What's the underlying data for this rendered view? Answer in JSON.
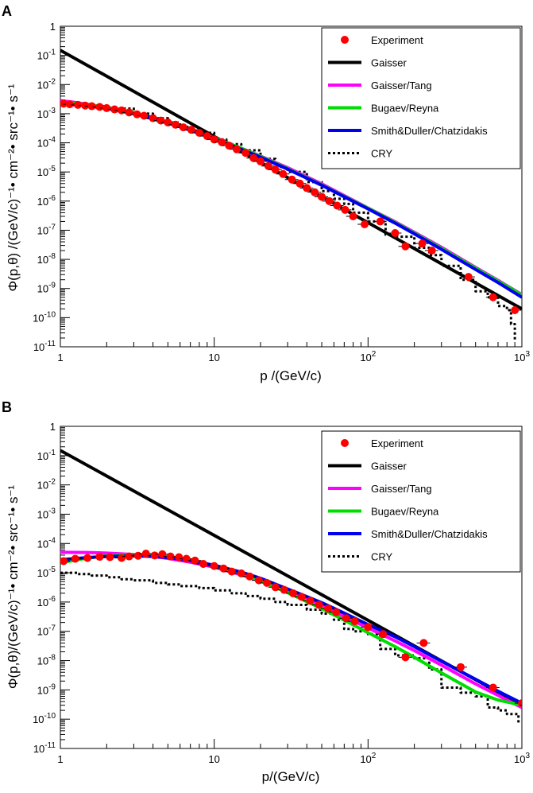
{
  "chart_data": [
    {
      "panel": "A",
      "type": "line",
      "xscale": "log",
      "yscale": "log",
      "xlim": [
        1,
        1000
      ],
      "ylim": [
        1e-11,
        1
      ],
      "xlabel": "p /(GeV/c)",
      "ylabel": "Φ(p,θ) /(GeV/c)⁻¹• cm⁻²• src⁻¹• s⁻¹",
      "xticks": [
        {
          "value": 1,
          "base": "1",
          "exp": ""
        },
        {
          "value": 10,
          "base": "10",
          "exp": ""
        },
        {
          "value": 100,
          "base": "10",
          "exp": "2"
        },
        {
          "value": 1000,
          "base": "10",
          "exp": "3"
        }
      ],
      "yticks": [
        {
          "value": 1,
          "base": "1",
          "exp": ""
        },
        {
          "value": 0.1,
          "base": "10",
          "exp": "-1"
        },
        {
          "value": 0.01,
          "base": "10",
          "exp": "-2"
        },
        {
          "value": 0.001,
          "base": "10",
          "exp": "-3"
        },
        {
          "value": 0.0001,
          "base": "10",
          "exp": "-4"
        },
        {
          "value": 1e-05,
          "base": "10",
          "exp": "-5"
        },
        {
          "value": 1e-06,
          "base": "10",
          "exp": "-6"
        },
        {
          "value": 1e-07,
          "base": "10",
          "exp": "-7"
        },
        {
          "value": 1e-08,
          "base": "10",
          "exp": "-8"
        },
        {
          "value": 1e-09,
          "base": "10",
          "exp": "-9"
        },
        {
          "value": 1e-10,
          "base": "10",
          "exp": "-10"
        },
        {
          "value": 1e-11,
          "base": "10",
          "exp": "-11"
        }
      ],
      "legend_position": "top-right",
      "experiment": {
        "name": "Experiment",
        "color": "#ff0000",
        "points": [
          {
            "x": 1.05,
            "y": 0.0022
          },
          {
            "x": 1.15,
            "y": 0.0021
          },
          {
            "x": 1.3,
            "y": 0.002
          },
          {
            "x": 1.45,
            "y": 0.0019
          },
          {
            "x": 1.6,
            "y": 0.0018
          },
          {
            "x": 1.8,
            "y": 0.0017
          },
          {
            "x": 2.0,
            "y": 0.00155
          },
          {
            "x": 2.25,
            "y": 0.0014
          },
          {
            "x": 2.5,
            "y": 0.0013
          },
          {
            "x": 2.8,
            "y": 0.0011
          },
          {
            "x": 3.15,
            "y": 0.00095
          },
          {
            "x": 3.5,
            "y": 0.00085
          },
          {
            "x": 4.0,
            "y": 0.0007
          },
          {
            "x": 4.5,
            "y": 0.00058
          },
          {
            "x": 5.0,
            "y": 0.0005
          },
          {
            "x": 5.6,
            "y": 0.00042
          },
          {
            "x": 6.3,
            "y": 0.00034
          },
          {
            "x": 7.1,
            "y": 0.00028
          },
          {
            "x": 8.0,
            "y": 0.00022
          },
          {
            "x": 9.0,
            "y": 0.00017
          },
          {
            "x": 10.0,
            "y": 0.00013
          },
          {
            "x": 11.2,
            "y": 0.000105
          },
          {
            "x": 12.5,
            "y": 8e-05
          },
          {
            "x": 14.0,
            "y": 6e-05
          },
          {
            "x": 16.0,
            "y": 4.5e-05
          },
          {
            "x": 18.0,
            "y": 3e-05
          },
          {
            "x": 20.0,
            "y": 2.3e-05
          },
          {
            "x": 22.5,
            "y": 1.6e-05
          },
          {
            "x": 25.0,
            "y": 1.2e-05
          },
          {
            "x": 28.0,
            "y": 8.5e-06
          },
          {
            "x": 32.0,
            "y": 5.5e-06
          },
          {
            "x": 36.0,
            "y": 4e-06
          },
          {
            "x": 40.0,
            "y": 2.8e-06
          },
          {
            "x": 45.0,
            "y": 2e-06
          },
          {
            "x": 50.0,
            "y": 1.4e-06
          },
          {
            "x": 56.0,
            "y": 1e-06
          },
          {
            "x": 63.0,
            "y": 7e-07
          },
          {
            "x": 71.0,
            "y": 5e-07
          },
          {
            "x": 80.0,
            "y": 3e-07
          },
          {
            "x": 95.0,
            "y": 1.6e-07
          },
          {
            "x": 120.0,
            "y": 2e-07
          },
          {
            "x": 150.0,
            "y": 8e-08
          },
          {
            "x": 175.0,
            "y": 2.8e-08
          },
          {
            "x": 225.0,
            "y": 3.5e-08
          },
          {
            "x": 260.0,
            "y": 2e-08
          },
          {
            "x": 450.0,
            "y": 2.5e-09
          },
          {
            "x": 650.0,
            "y": 5e-10
          },
          {
            "x": 900.0,
            "y": 1.8e-10
          }
        ]
      },
      "series": [
        {
          "name": "Gaisser",
          "color": "#000000",
          "style": "solid",
          "x": [
            1,
            1000
          ],
          "y": [
            0.15,
            2e-10
          ]
        },
        {
          "name": "Gaisser/Tang",
          "color": "#ff00ff",
          "style": "solid",
          "x": [
            1,
            1.2,
            1.5,
            2,
            3,
            5,
            7,
            10,
            15,
            20,
            30,
            50,
            70,
            100,
            150,
            200,
            300,
            500,
            700,
            1000
          ],
          "y": [
            0.0028,
            0.0025,
            0.0021,
            0.0016,
            0.001,
            0.00048,
            0.00028,
            0.000145,
            6.5e-05,
            3.5e-05,
            1.4e-05,
            3.9e-06,
            1.55e-06,
            5.8e-07,
            1.95e-07,
            8.5e-08,
            2.6e-08,
            5.3e-09,
            1.9e-09,
            6.2e-10
          ]
        },
        {
          "name": "Bugaev/Reyna",
          "color": "#00dd00",
          "style": "solid",
          "x": [
            1,
            1.2,
            1.5,
            2,
            3,
            5,
            7,
            10,
            15,
            20,
            30,
            50,
            70,
            100,
            150,
            200,
            300,
            500,
            700,
            1000
          ],
          "y": [
            0.0024,
            0.0023,
            0.00205,
            0.00165,
            0.0011,
            0.00052,
            0.00029,
            0.00015,
            6.5e-05,
            3.4e-05,
            1.3e-05,
            3.6e-06,
            1.45e-06,
            5.7e-07,
            1.85e-07,
            8e-08,
            2.4e-08,
            5e-09,
            1.8e-09,
            6e-10
          ]
        },
        {
          "name": "Smith&Duller/Chatzidakis",
          "color": "#0000ee",
          "style": "solid",
          "x": [
            1,
            1.2,
            1.5,
            2,
            3,
            5,
            7,
            10,
            15,
            20,
            30,
            50,
            70,
            100,
            150,
            200,
            300,
            500,
            700,
            1000
          ],
          "y": [
            0.0022,
            0.00205,
            0.00185,
            0.0015,
            0.001,
            0.00048,
            0.00027,
            0.00014,
            6e-05,
            3.2e-05,
            1.25e-05,
            3.5e-06,
            1.4e-06,
            5.4e-07,
            1.75e-07,
            7.5e-08,
            2.2e-08,
            4.5e-09,
            1.6e-09,
            5e-10
          ]
        },
        {
          "name": "CRY",
          "color": "#000000",
          "style": "dotted",
          "x": [
            1,
            1.5,
            2,
            3,
            4,
            5,
            6,
            7,
            8,
            10,
            12,
            15,
            20,
            25,
            30,
            40,
            50,
            60,
            70,
            80,
            100,
            130,
            150,
            200,
            250,
            300,
            400,
            500,
            600,
            700,
            800,
            850,
            900
          ],
          "y": [
            0.002,
            0.0018,
            0.0015,
            0.001,
            0.0007,
            0.0005,
            0.00035,
            0.00028,
            0.00022,
            0.00013,
            9e-05,
            5.5e-05,
            2.8e-05,
            1.5e-05,
            1e-05,
            4.5e-06,
            2.2e-06,
            1.2e-06,
            8e-07,
            4e-07,
            2e-07,
            7e-08,
            6e-08,
            2.5e-08,
            1.4e-08,
            6e-09,
            2e-09,
            8e-10,
            5e-10,
            2.5e-10,
            1.8e-10,
            6e-11,
            1.5e-11
          ]
        }
      ]
    },
    {
      "panel": "B",
      "type": "line",
      "xscale": "log",
      "yscale": "log",
      "xlim": [
        1,
        1000
      ],
      "ylim": [
        1e-11,
        1
      ],
      "xlabel": "p/(GeV/c)",
      "ylabel": "Φ(p,θ)/(GeV/c)⁻¹• cm⁻²• src⁻¹• s⁻¹",
      "xticks": [
        {
          "value": 1,
          "base": "1",
          "exp": ""
        },
        {
          "value": 10,
          "base": "10",
          "exp": ""
        },
        {
          "value": 100,
          "base": "10",
          "exp": "2"
        },
        {
          "value": 1000,
          "base": "10",
          "exp": "3"
        }
      ],
      "yticks": [
        {
          "value": 1,
          "base": "1",
          "exp": ""
        },
        {
          "value": 0.1,
          "base": "10",
          "exp": "-1"
        },
        {
          "value": 0.01,
          "base": "10",
          "exp": "-2"
        },
        {
          "value": 0.001,
          "base": "10",
          "exp": "-3"
        },
        {
          "value": 0.0001,
          "base": "10",
          "exp": "-4"
        },
        {
          "value": 1e-05,
          "base": "10",
          "exp": "-5"
        },
        {
          "value": 1e-06,
          "base": "10",
          "exp": "-6"
        },
        {
          "value": 1e-07,
          "base": "10",
          "exp": "-7"
        },
        {
          "value": 1e-08,
          "base": "10",
          "exp": "-8"
        },
        {
          "value": 1e-09,
          "base": "10",
          "exp": "-9"
        },
        {
          "value": 1e-10,
          "base": "10",
          "exp": "-10"
        },
        {
          "value": 1e-11,
          "base": "10",
          "exp": "-11"
        }
      ],
      "legend_position": "top-right",
      "experiment": {
        "name": "Experiment",
        "color": "#ff0000",
        "points": [
          {
            "x": 1.05,
            "y": 2.5e-05
          },
          {
            "x": 1.25,
            "y": 3e-05
          },
          {
            "x": 1.5,
            "y": 3.2e-05
          },
          {
            "x": 1.8,
            "y": 3.5e-05
          },
          {
            "x": 2.1,
            "y": 3.4e-05
          },
          {
            "x": 2.5,
            "y": 3.2e-05
          },
          {
            "x": 2.8,
            "y": 3.6e-05
          },
          {
            "x": 3.2,
            "y": 3.8e-05
          },
          {
            "x": 3.6,
            "y": 4.5e-05
          },
          {
            "x": 4.1,
            "y": 3.9e-05
          },
          {
            "x": 4.6,
            "y": 4.3e-05
          },
          {
            "x": 5.2,
            "y": 3.6e-05
          },
          {
            "x": 5.9,
            "y": 3.4e-05
          },
          {
            "x": 6.6,
            "y": 3e-05
          },
          {
            "x": 7.5,
            "y": 2.6e-05
          },
          {
            "x": 8.5,
            "y": 2e-05
          },
          {
            "x": 10.0,
            "y": 1.7e-05
          },
          {
            "x": 11.5,
            "y": 1.4e-05
          },
          {
            "x": 13.0,
            "y": 1.1e-05
          },
          {
            "x": 15.0,
            "y": 9.5e-06
          },
          {
            "x": 17.0,
            "y": 7.5e-06
          },
          {
            "x": 19.5,
            "y": 5.5e-06
          },
          {
            "x": 22.0,
            "y": 4.5e-06
          },
          {
            "x": 25.0,
            "y": 3.2e-06
          },
          {
            "x": 28.5,
            "y": 2.6e-06
          },
          {
            "x": 32.5,
            "y": 2e-06
          },
          {
            "x": 37.0,
            "y": 1.5e-06
          },
          {
            "x": 42.0,
            "y": 1.1e-06
          },
          {
            "x": 48.0,
            "y": 8e-07
          },
          {
            "x": 55.0,
            "y": 6e-07
          },
          {
            "x": 62.0,
            "y": 4.5e-07
          },
          {
            "x": 72.0,
            "y": 2.8e-07
          },
          {
            "x": 82.0,
            "y": 2.2e-07
          },
          {
            "x": 100.0,
            "y": 1.4e-07
          },
          {
            "x": 125.0,
            "y": 8e-08
          },
          {
            "x": 175.0,
            "y": 1.3e-08
          },
          {
            "x": 230.0,
            "y": 4e-08
          },
          {
            "x": 400.0,
            "y": 6e-09
          },
          {
            "x": 650.0,
            "y": 1.2e-09
          },
          {
            "x": 1000.0,
            "y": 3.5e-10
          },
          {
            "x": 1080.0,
            "y": 3e-10
          }
        ]
      },
      "series": [
        {
          "name": "Gaisser",
          "color": "#000000",
          "style": "solid",
          "x": [
            1,
            1000
          ],
          "y": [
            0.15,
            3e-10
          ]
        },
        {
          "name": "Gaisser/Tang",
          "color": "#ff00ff",
          "style": "solid",
          "x": [
            1,
            1.5,
            2,
            3,
            4,
            5,
            7,
            10,
            15,
            20,
            30,
            50,
            70,
            100,
            150,
            200,
            300,
            500,
            700,
            1000
          ],
          "y": [
            5e-05,
            4.9e-05,
            4.7e-05,
            4.2e-05,
            3.6e-05,
            3.1e-05,
            2.3e-05,
            1.55e-05,
            8.5e-06,
            5.2e-06,
            2.3e-06,
            7.5e-07,
            3.2e-07,
            1.3e-07,
            4.7e-08,
            2.2e-08,
            7e-09,
            1.6e-09,
            6.5e-10,
            2.5e-10
          ]
        },
        {
          "name": "Bugaev/Reyna",
          "color": "#00dd00",
          "style": "solid",
          "x": [
            1,
            1.5,
            2,
            3,
            4,
            5,
            7,
            10,
            15,
            20,
            30,
            50,
            70,
            100,
            150,
            200,
            300,
            500,
            700,
            1000
          ],
          "y": [
            2.2e-05,
            3.2e-05,
            3.8e-05,
            4.2e-05,
            4e-05,
            3.6e-05,
            2.7e-05,
            1.75e-05,
            9e-06,
            5.2e-06,
            2.1e-06,
            6e-07,
            2.4e-07,
            9e-08,
            3e-08,
            1.3e-08,
            3.8e-09,
            8.5e-10,
            4.5e-10,
            3e-10
          ]
        },
        {
          "name": "Smith&Duller/Chatzidakis",
          "color": "#0000ee",
          "style": "solid",
          "x": [
            1,
            1.5,
            2,
            3,
            4,
            5,
            7,
            10,
            15,
            20,
            30,
            50,
            70,
            100,
            150,
            200,
            300,
            500,
            700,
            1000
          ],
          "y": [
            2.8e-05,
            3.3e-05,
            3.6e-05,
            3.8e-05,
            3.6e-05,
            3.3e-05,
            2.6e-05,
            1.8e-05,
            1.05e-05,
            6.5e-06,
            2.8e-06,
            9.5e-07,
            4.2e-07,
            1.7e-07,
            6.5e-08,
            3e-08,
            9.5e-09,
            2.3e-09,
            9e-10,
            3.5e-10
          ]
        },
        {
          "name": "CRY",
          "color": "#000000",
          "style": "dotted",
          "x": [
            1,
            1.3,
            1.6,
            2,
            2.5,
            3,
            4,
            5,
            6,
            8,
            10,
            13,
            16,
            20,
            25,
            30,
            40,
            50,
            60,
            70,
            80,
            100,
            120,
            150,
            200,
            250,
            300,
            400,
            500,
            600,
            700,
            800,
            950
          ],
          "y": [
            1e-05,
            9e-06,
            8e-06,
            7e-06,
            6e-06,
            5.5e-06,
            4.5e-06,
            4e-06,
            3.5e-06,
            3e-06,
            2.5e-06,
            2e-06,
            1.6e-06,
            1.3e-06,
            1e-06,
            8e-07,
            5.5e-07,
            4e-07,
            2.5e-07,
            1.2e-07,
            1e-07,
            8e-08,
            2.5e-08,
            1.5e-08,
            1.2e-08,
            5e-09,
            1.2e-09,
            8e-10,
            6e-10,
            2.5e-10,
            2e-10,
            1.5e-10,
            7e-11
          ]
        }
      ]
    }
  ]
}
